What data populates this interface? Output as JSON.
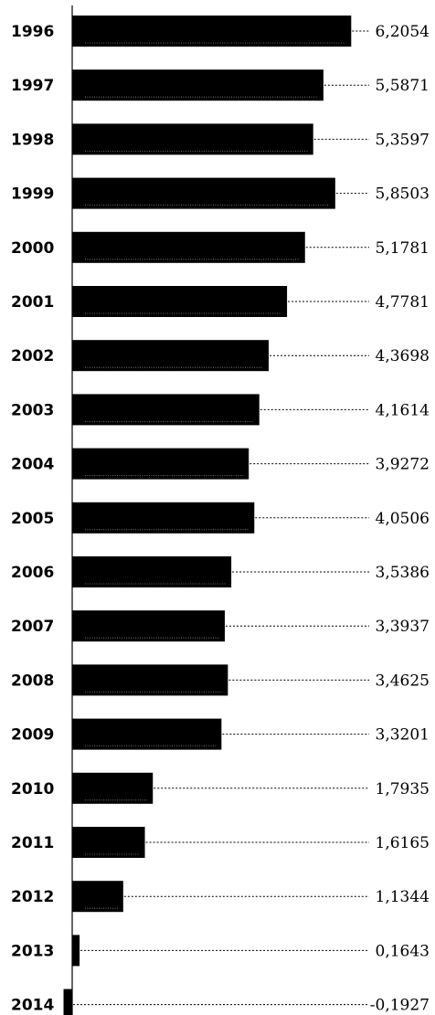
{
  "chart_data": {
    "type": "bar",
    "orientation": "horizontal",
    "categories": [
      "1996",
      "1997",
      "1998",
      "1999",
      "2000",
      "2001",
      "2002",
      "2003",
      "2004",
      "2005",
      "2006",
      "2007",
      "2008",
      "2009",
      "2010",
      "2011",
      "2012",
      "2013",
      "2014"
    ],
    "values": [
      6.2054,
      5.5871,
      5.3597,
      5.8503,
      5.1781,
      4.7781,
      4.3698,
      4.1614,
      3.9272,
      4.0506,
      3.5386,
      3.3937,
      3.4625,
      3.3201,
      1.7935,
      1.6165,
      1.1344,
      0.1643,
      -0.1927
    ],
    "value_labels": [
      "6,2054",
      "5,5871",
      "5,3597",
      "5,8503",
      "5,1781",
      "4,7781",
      "4,3698",
      "4,1614",
      "3,9272",
      "4,0506",
      "3,5386",
      "3,3937",
      "3,4625",
      "3,3201",
      "1,7935",
      "1,6165",
      "1,1344",
      "0,1643",
      "-0,1927"
    ],
    "title": "",
    "xlabel": "",
    "ylabel": "",
    "xlim": [
      -0.2,
      7.7
    ],
    "grid": false,
    "legend": "none",
    "bar_color": "#000000",
    "background": "#ffffff"
  }
}
